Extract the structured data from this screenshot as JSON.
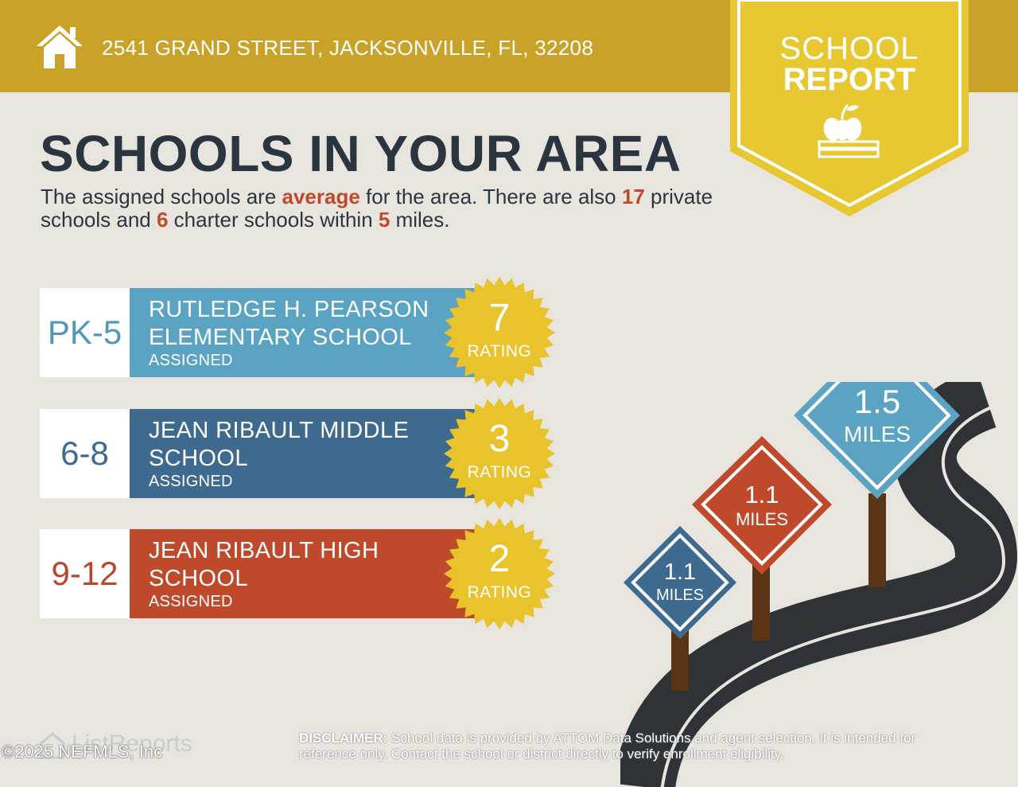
{
  "header": {
    "address": "2541 GRAND STREET, JACKSONVILLE, FL, 32208",
    "badge_line1": "SCHOOL",
    "badge_line2": "REPORT"
  },
  "title": "SCHOOLS IN YOUR AREA",
  "intro": {
    "part1": "The assigned schools are ",
    "quality": "average",
    "part2": " for the area. There are also ",
    "private_count": "17",
    "part3": " private schools and ",
    "charter_count": "6",
    "part4": " charter schools within ",
    "radius": "5",
    "part5": " miles."
  },
  "schools": [
    {
      "grades": "PK-5",
      "name_line1": "RUTLEDGE H. PEARSON",
      "name_line2": "ELEMENTARY SCHOOL",
      "status": "ASSIGNED",
      "rating": "7",
      "rating_label": "RATING"
    },
    {
      "grades": "6-8",
      "name_line1": "JEAN RIBAULT MIDDLE",
      "name_line2": "SCHOOL",
      "status": "ASSIGNED",
      "rating": "3",
      "rating_label": "RATING"
    },
    {
      "grades": "9-12",
      "name_line1": "JEAN RIBAULT HIGH",
      "name_line2": "SCHOOL",
      "status": "ASSIGNED",
      "rating": "2",
      "rating_label": "RATING"
    }
  ],
  "signs": [
    {
      "distance": "1.1",
      "unit": "MILES",
      "color": "#3d6a8e"
    },
    {
      "distance": "1.1",
      "unit": "MILES",
      "color": "#bf4a2b"
    },
    {
      "distance": "1.5",
      "unit": "MILES",
      "color": "#5aa3c2"
    }
  ],
  "footer": {
    "brand": "ListReports",
    "copyright": "©2025 NEFMLS, Inc",
    "disclaimer_label": "DISCLAIMER:",
    "disclaimer_text": " School data is provided by ATTOM Data Solutions and agent selection. It is intended for reference only. Contact the school or district directly to verify enrollment eligibility."
  },
  "colors": {
    "header": "#c9a22a",
    "badge": "#e7c831",
    "seal": "#e8c32c",
    "elementary": "#5aa3c2",
    "middle": "#3d6a8e",
    "high": "#bf4a2b",
    "title": "#2b3540"
  }
}
